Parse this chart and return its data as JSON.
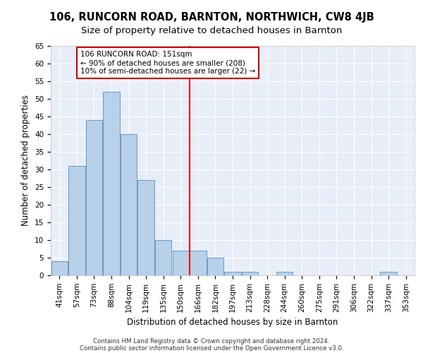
{
  "title1": "106, RUNCORN ROAD, BARNTON, NORTHWICH, CW8 4JB",
  "title2": "Size of property relative to detached houses in Barnton",
  "xlabel": "Distribution of detached houses by size in Barnton",
  "ylabel": "Number of detached properties",
  "categories": [
    "41sqm",
    "57sqm",
    "73sqm",
    "88sqm",
    "104sqm",
    "119sqm",
    "135sqm",
    "150sqm",
    "166sqm",
    "182sqm",
    "197sqm",
    "213sqm",
    "228sqm",
    "244sqm",
    "260sqm",
    "275sqm",
    "291sqm",
    "306sqm",
    "322sqm",
    "337sqm",
    "353sqm"
  ],
  "values": [
    4,
    31,
    44,
    52,
    40,
    27,
    10,
    7,
    7,
    5,
    1,
    1,
    0,
    1,
    0,
    0,
    0,
    0,
    0,
    1,
    0
  ],
  "bar_color": "#b8d0e8",
  "bar_edge_color": "#6699cc",
  "red_line_x": 7.5,
  "annotation_text": "106 RUNCORN ROAD: 151sqm\n← 90% of detached houses are smaller (208)\n10% of semi-detached houses are larger (22) →",
  "annotation_box_color": "#ffffff",
  "annotation_box_edge": "#cc0000",
  "footer1": "Contains HM Land Registry data © Crown copyright and database right 2024.",
  "footer2": "Contains public sector information licensed under the Open Government Licence v3.0.",
  "ylim": [
    0,
    65
  ],
  "yticks": [
    0,
    5,
    10,
    15,
    20,
    25,
    30,
    35,
    40,
    45,
    50,
    55,
    60,
    65
  ],
  "bg_color": "#e8eef8",
  "grid_color": "#ffffff",
  "title1_fontsize": 10.5,
  "title2_fontsize": 9.5,
  "xlabel_fontsize": 8.5,
  "ylabel_fontsize": 8.5,
  "footer_fontsize": 6.2,
  "annotation_fontsize": 7.5,
  "tick_fontsize": 7.5,
  "ytick_fontsize": 7.5
}
